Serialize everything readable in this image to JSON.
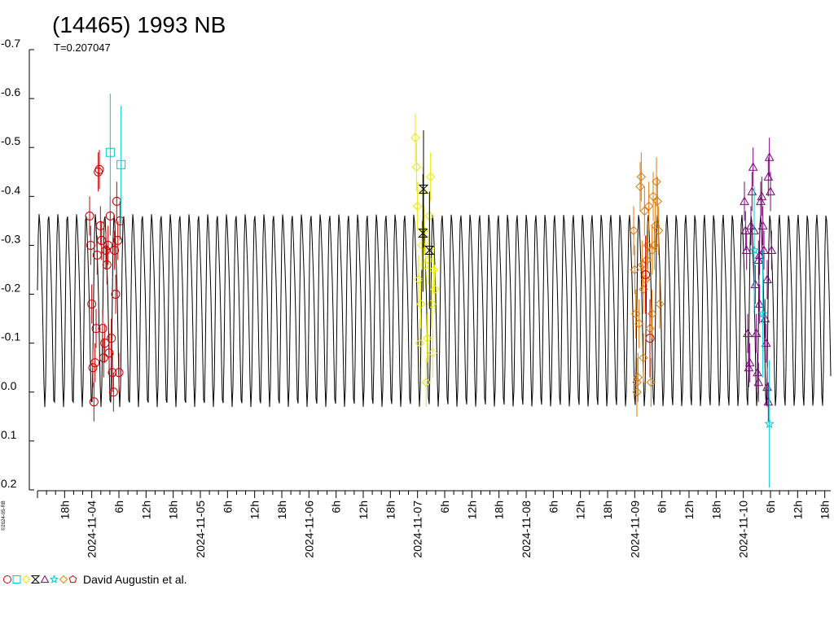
{
  "chart_data": {
    "type": "scatter",
    "title": "(14465) 1993 NB",
    "subtitle": "T=0.207047",
    "copyright": "©2024-05-RB",
    "legend_label": "David Augustin et al.",
    "x_unit": "days since 2024-11-03 12:00 UTC",
    "xlim": [
      0,
      7.305
    ],
    "ylim": [
      0.2,
      -0.7
    ],
    "y_ticks": [
      {
        "value": -0.7,
        "label": "-0.7"
      },
      {
        "value": -0.6,
        "label": "-0.6"
      },
      {
        "value": -0.5,
        "label": "-0.5"
      },
      {
        "value": -0.4,
        "label": "-0.4"
      },
      {
        "value": -0.3,
        "label": "-0.3"
      },
      {
        "value": -0.2,
        "label": "-0.2"
      },
      {
        "value": -0.1,
        "label": "-0.1"
      },
      {
        "value": 0.0,
        "label": "0.0"
      },
      {
        "value": 0.1,
        "label": "0.1"
      },
      {
        "value": 0.2,
        "label": "0.2"
      }
    ],
    "x_labels": [
      {
        "value": 0.25,
        "label": "18h"
      },
      {
        "value": 0.5,
        "label": "2024-11-04"
      },
      {
        "value": 0.75,
        "label": "6h"
      },
      {
        "value": 1.0,
        "label": "12h"
      },
      {
        "value": 1.25,
        "label": "18h"
      },
      {
        "value": 1.5,
        "label": "2024-11-05"
      },
      {
        "value": 1.75,
        "label": "6h"
      },
      {
        "value": 2.0,
        "label": "12h"
      },
      {
        "value": 2.25,
        "label": "18h"
      },
      {
        "value": 2.5,
        "label": "2024-11-06"
      },
      {
        "value": 2.75,
        "label": "6h"
      },
      {
        "value": 3.0,
        "label": "12h"
      },
      {
        "value": 3.25,
        "label": "18h"
      },
      {
        "value": 3.5,
        "label": "2024-11-07"
      },
      {
        "value": 3.75,
        "label": "6h"
      },
      {
        "value": 4.0,
        "label": "12h"
      },
      {
        "value": 4.25,
        "label": "18h"
      },
      {
        "value": 4.5,
        "label": "2024-11-08"
      },
      {
        "value": 4.75,
        "label": "6h"
      },
      {
        "value": 5.0,
        "label": "12h"
      },
      {
        "value": 5.25,
        "label": "18h"
      },
      {
        "value": 5.5,
        "label": "2024-11-09"
      },
      {
        "value": 5.75,
        "label": "6h"
      },
      {
        "value": 6.0,
        "label": "12h"
      },
      {
        "value": 6.25,
        "label": "18h"
      },
      {
        "value": 6.5,
        "label": "2024-11-10"
      },
      {
        "value": 6.75,
        "label": "6h"
      },
      {
        "value": 7.0,
        "label": "12h"
      },
      {
        "value": 7.25,
        "label": "18h"
      }
    ],
    "model": {
      "period_days": 0.08627,
      "mean": -0.185,
      "amplitude": 0.2,
      "color": "#000000"
    },
    "legend_symbols": [
      {
        "shape": "circle",
        "color": "#d00000"
      },
      {
        "shape": "square",
        "color": "#00c8d0"
      },
      {
        "shape": "diamond",
        "color": "#e8e800"
      },
      {
        "shape": "hourglass",
        "color": "#000000"
      },
      {
        "shape": "triangle",
        "color": "#800080"
      },
      {
        "shape": "star",
        "color": "#00c8d0"
      },
      {
        "shape": "diamond",
        "color": "#e88000"
      },
      {
        "shape": "pentagon",
        "color": "#d00000"
      }
    ],
    "series": [
      {
        "shape": "circle",
        "color": "#c80000",
        "err": 0.04,
        "points": [
          [
            0.48,
            -0.36
          ],
          [
            0.49,
            -0.3
          ],
          [
            0.5,
            -0.18
          ],
          [
            0.51,
            -0.05
          ],
          [
            0.52,
            0.02
          ],
          [
            0.53,
            -0.06
          ],
          [
            0.54,
            -0.13
          ],
          [
            0.55,
            -0.28
          ],
          [
            0.56,
            -0.45
          ],
          [
            0.57,
            -0.455
          ],
          [
            0.58,
            -0.34
          ],
          [
            0.59,
            -0.31
          ],
          [
            0.6,
            -0.13
          ],
          [
            0.61,
            -0.07
          ],
          [
            0.62,
            -0.1
          ],
          [
            0.63,
            -0.29
          ],
          [
            0.64,
            -0.26
          ],
          [
            0.65,
            -0.3
          ],
          [
            0.66,
            -0.08
          ],
          [
            0.67,
            -0.36
          ],
          [
            0.68,
            -0.11
          ],
          [
            0.69,
            -0.04
          ],
          [
            0.7,
            0.0
          ],
          [
            0.71,
            -0.29
          ],
          [
            0.72,
            -0.2
          ],
          [
            0.73,
            -0.39
          ],
          [
            0.74,
            -0.31
          ],
          [
            0.75,
            -0.04
          ],
          [
            0.76,
            -0.35
          ]
        ]
      },
      {
        "shape": "square",
        "color": "#00c8d0",
        "err": 0.12,
        "points": [
          [
            0.67,
            -0.49
          ],
          [
            0.77,
            -0.465
          ]
        ]
      },
      {
        "shape": "diamond",
        "color": "#e8e800",
        "err": 0.05,
        "points": [
          [
            3.48,
            -0.52
          ],
          [
            3.49,
            -0.46
          ],
          [
            3.5,
            -0.38
          ],
          [
            3.51,
            -0.23
          ],
          [
            3.52,
            -0.1
          ],
          [
            3.53,
            -0.18
          ],
          [
            3.54,
            -0.3
          ],
          [
            3.55,
            -0.41
          ],
          [
            3.56,
            -0.33
          ],
          [
            3.57,
            -0.26
          ],
          [
            3.58,
            -0.02
          ],
          [
            3.59,
            -0.11
          ],
          [
            3.6,
            -0.27
          ],
          [
            3.61,
            -0.36
          ],
          [
            3.62,
            -0.44
          ],
          [
            3.63,
            -0.18
          ],
          [
            3.64,
            -0.08
          ],
          [
            3.65,
            -0.25
          ],
          [
            3.66,
            -0.21
          ]
        ]
      },
      {
        "shape": "hourglass",
        "color": "#000000",
        "err": 0.12,
        "points": [
          [
            3.555,
            -0.415
          ],
          [
            3.55,
            -0.325
          ],
          [
            3.61,
            -0.29
          ]
        ]
      },
      {
        "shape": "diamond",
        "color": "#e07800",
        "err": 0.05,
        "points": [
          [
            5.49,
            -0.33
          ],
          [
            5.5,
            -0.25
          ],
          [
            5.51,
            -0.16
          ],
          [
            5.52,
            0.0
          ],
          [
            5.53,
            -0.03
          ],
          [
            5.54,
            -0.14
          ],
          [
            5.55,
            -0.42
          ],
          [
            5.56,
            -0.44
          ],
          [
            5.57,
            -0.26
          ],
          [
            5.58,
            -0.21
          ],
          [
            5.59,
            -0.37
          ],
          [
            5.6,
            -0.23
          ],
          [
            5.61,
            -0.27
          ],
          [
            5.62,
            -0.3
          ],
          [
            5.63,
            -0.38
          ],
          [
            5.64,
            -0.13
          ],
          [
            5.65,
            -0.02
          ],
          [
            5.66,
            -0.16
          ],
          [
            5.67,
            -0.4
          ],
          [
            5.68,
            -0.3
          ],
          [
            5.69,
            -0.34
          ],
          [
            5.7,
            -0.43
          ],
          [
            5.71,
            -0.39
          ],
          [
            5.72,
            -0.33
          ],
          [
            5.73,
            -0.18
          ],
          [
            5.52,
            -0.02
          ],
          [
            5.58,
            -0.07
          ],
          [
            5.66,
            -0.29
          ]
        ]
      },
      {
        "shape": "circle",
        "color": "#c80000",
        "err": 0.08,
        "points": [
          [
            5.6,
            -0.24
          ],
          [
            5.64,
            -0.11
          ]
        ]
      },
      {
        "shape": "triangle",
        "color": "#800080",
        "err": 0.04,
        "points": [
          [
            6.51,
            -0.39
          ],
          [
            6.52,
            -0.33
          ],
          [
            6.53,
            -0.29
          ],
          [
            6.54,
            -0.12
          ],
          [
            6.55,
            -0.05
          ],
          [
            6.56,
            -0.06
          ],
          [
            6.57,
            -0.34
          ],
          [
            6.58,
            -0.41
          ],
          [
            6.59,
            -0.46
          ],
          [
            6.6,
            -0.33
          ],
          [
            6.61,
            -0.22
          ],
          [
            6.62,
            -0.12
          ],
          [
            6.63,
            -0.04
          ],
          [
            6.64,
            -0.02
          ],
          [
            6.65,
            -0.28
          ],
          [
            6.66,
            -0.39
          ],
          [
            6.67,
            -0.4
          ],
          [
            6.68,
            -0.34
          ],
          [
            6.69,
            -0.29
          ],
          [
            6.7,
            -0.15
          ],
          [
            6.71,
            -0.1
          ],
          [
            6.72,
            -0.23
          ],
          [
            6.73,
            -0.44
          ],
          [
            6.74,
            -0.48
          ],
          [
            6.75,
            -0.41
          ],
          [
            6.76,
            -0.29
          ],
          [
            6.72,
            -0.01
          ],
          [
            6.73,
            0.02
          ],
          [
            6.65,
            -0.18
          ],
          [
            6.64,
            -0.27
          ]
        ]
      },
      {
        "shape": "star",
        "color": "#00c8d0",
        "err": 0.13,
        "points": [
          [
            6.6,
            -0.29
          ],
          [
            6.68,
            -0.16
          ],
          [
            6.74,
            0.065
          ]
        ]
      }
    ]
  }
}
